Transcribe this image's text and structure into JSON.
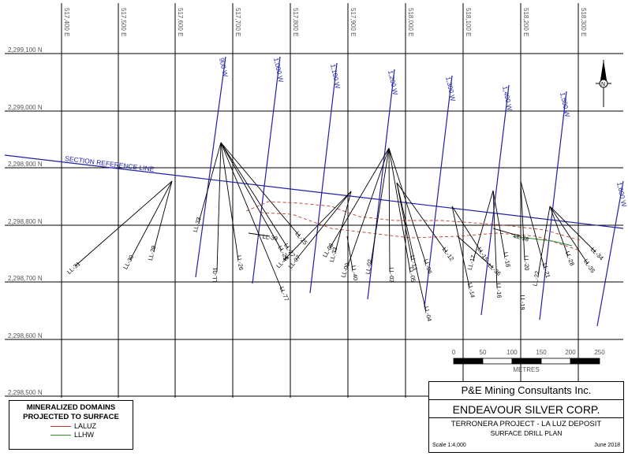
{
  "eastings": [
    "517,400 E",
    "517,500 E",
    "517,600 E",
    "517,700 E",
    "517,800 E",
    "517,900 E",
    "518,000 E",
    "518,100 E",
    "518,200 E",
    "518,300 E"
  ],
  "northings": [
    "2,299,100 N",
    "2,299,000 N",
    "2,298,900 N",
    "2,298,800 N",
    "2,298,700 N",
    "2,298,600 N",
    "2,298,500 N"
  ],
  "sections": [
    "900 W",
    "1,000 W",
    "1,100 W",
    "1,200 W",
    "1,300 W",
    "1,400 W",
    "1,500 W",
    "1,600 W"
  ],
  "reference_line_label": "SECTION REFERENCE LINE",
  "drill_holes": [
    "LL-31",
    "LL-30",
    "LL-29",
    "LL-01",
    "LL-26",
    "LL-27",
    "LL-77",
    "LL-24",
    "LL-25",
    "LL-23",
    "LL-41",
    "LL-33",
    "LL-07",
    "LL-08",
    "LL-09",
    "LL-02",
    "LL-03",
    "LL-05",
    "LL-06",
    "LL-04",
    "LL-12",
    "LL-13",
    "LL-14",
    "LL-15",
    "LL-16",
    "LL-17",
    "LL-18",
    "LL-19",
    "LL-20",
    "LL-21",
    "LL-22",
    "LL-28",
    "LL-34",
    "LL-35",
    "LL-36",
    "LL-38",
    "LL-39",
    "LL-40"
  ],
  "scale_bar": {
    "ticks": [
      "0",
      "50",
      "100",
      "150",
      "200",
      "250"
    ],
    "unit": "METRES"
  },
  "legend": {
    "title": "MINERALIZED DOMAINS\nPROJECTED TO SURFACE",
    "items": [
      {
        "label": "LALUZ",
        "color": "#c0392b"
      },
      {
        "label": "LLHW",
        "color": "#2e8b2e"
      }
    ]
  },
  "title_block": {
    "company": "P&E Mining Consultants Inc.",
    "client": "ENDEAVOUR SILVER CORP.",
    "project": "TERRONERA PROJECT - LA LUZ DEPOSIT",
    "plan": "SURFACE DRILL PLAN",
    "scale": "Scale 1:4,000",
    "date": "June 2018"
  },
  "colors": {
    "section_lines": "#1f1fa8",
    "laluz": "#c0392b",
    "llhw": "#2e8b2e"
  }
}
